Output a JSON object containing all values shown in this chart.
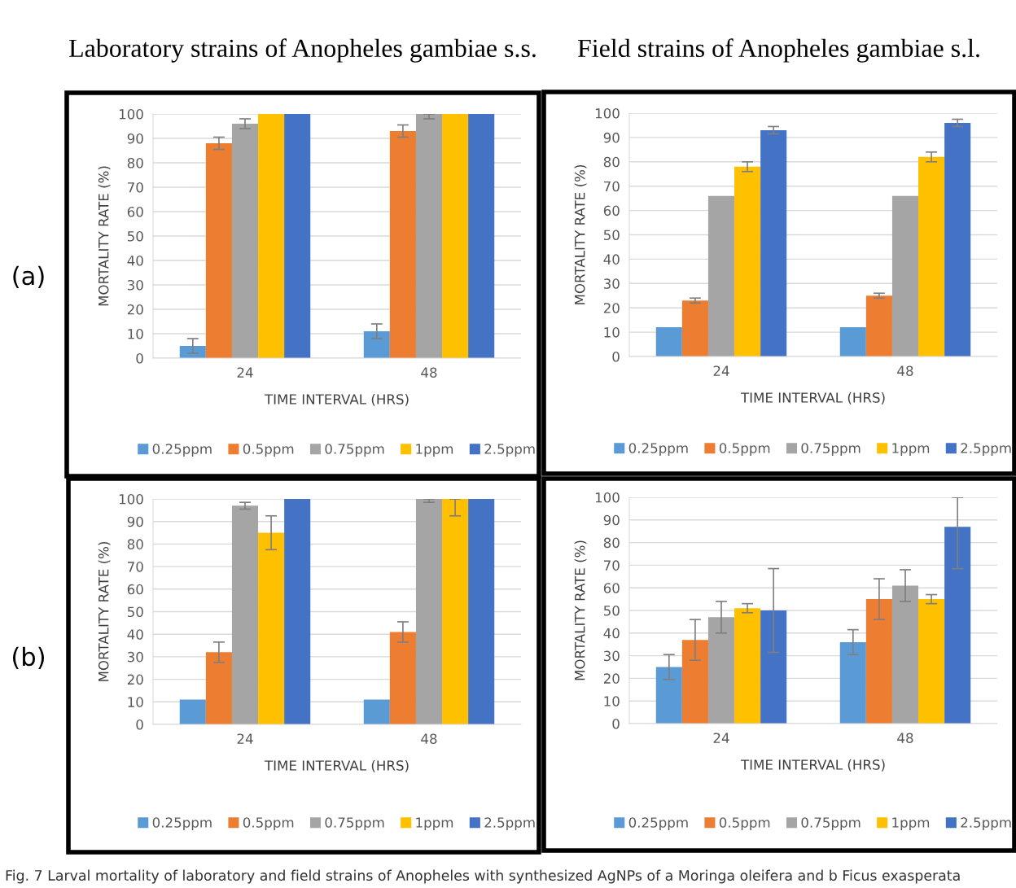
{
  "chart_data": [
    {
      "type": "bar",
      "title": "Laboratory strains of Anopheles gambiae s.s.",
      "xlabel": "TIME INTERVAL (HRS)",
      "ylabel": "MORTALITY RATE (%)",
      "categories": [
        "24",
        "48"
      ],
      "ylim": [
        0,
        100
      ],
      "yticks": [
        0,
        10,
        20,
        30,
        40,
        50,
        60,
        70,
        80,
        90,
        100
      ],
      "grid": "y",
      "legend": "bottom",
      "annotations": [
        "(a)"
      ],
      "series": [
        {
          "name": "0.25ppm",
          "color": "#5b9bd5",
          "values": [
            5,
            11
          ],
          "errors": [
            3,
            3
          ]
        },
        {
          "name": "0.5ppm",
          "color": "#ed7d31",
          "values": [
            88,
            93
          ],
          "errors": [
            2.5,
            2.5
          ]
        },
        {
          "name": "0.75ppm",
          "color": "#a5a5a5",
          "values": [
            96,
            100
          ],
          "errors": [
            2,
            [
              98,
              100
            ]
          ]
        },
        {
          "name": "1ppm",
          "color": "#ffc000",
          "values": [
            100,
            100
          ]
        },
        {
          "name": "2.5ppm",
          "color": "#4472c4",
          "values": [
            100,
            100
          ]
        }
      ]
    },
    {
      "type": "bar",
      "title": "Field strains of Anopheles gambiae s.l.",
      "xlabel": "TIME INTERVAL (HRS)",
      "ylabel": "MORTALITY RATE (%)",
      "categories": [
        "24",
        "48"
      ],
      "ylim": [
        0,
        100
      ],
      "yticks": [
        0,
        10,
        20,
        30,
        40,
        50,
        60,
        70,
        80,
        90,
        100
      ],
      "grid": "y",
      "legend": "bottom",
      "series": [
        {
          "name": "0.25ppm",
          "color": "#5b9bd5",
          "values": [
            12,
            12
          ]
        },
        {
          "name": "0.5ppm",
          "color": "#ed7d31",
          "values": [
            23,
            25
          ],
          "errors": [
            1,
            1
          ]
        },
        {
          "name": "0.75ppm",
          "color": "#a5a5a5",
          "values": [
            66,
            66
          ]
        },
        {
          "name": "1ppm",
          "color": "#ffc000",
          "values": [
            78,
            82
          ],
          "errors": [
            2,
            2
          ]
        },
        {
          "name": "2.5ppm",
          "color": "#4472c4",
          "values": [
            93,
            96
          ],
          "errors": [
            1.5,
            1.5
          ]
        }
      ]
    },
    {
      "type": "bar",
      "xlabel": "TIME INTERVAL (HRS)",
      "ylabel": "MORTALITY RATE (%)",
      "categories": [
        "24",
        "48"
      ],
      "ylim": [
        0,
        100
      ],
      "yticks": [
        0,
        10,
        20,
        30,
        40,
        50,
        60,
        70,
        80,
        90,
        100
      ],
      "grid": "y",
      "legend": "bottom",
      "annotations": [
        "(b)"
      ],
      "series": [
        {
          "name": "0.25ppm",
          "color": "#5b9bd5",
          "values": [
            11,
            11
          ]
        },
        {
          "name": "0.5ppm",
          "color": "#ed7d31",
          "values": [
            32,
            41
          ],
          "errors": [
            4.5,
            4.5
          ]
        },
        {
          "name": "0.75ppm",
          "color": "#a5a5a5",
          "values": [
            97,
            100
          ],
          "errors": [
            1.5,
            [
              98.5,
              100
            ]
          ]
        },
        {
          "name": "1ppm",
          "color": "#ffc000",
          "values": [
            85,
            100
          ],
          "errors": [
            7.5,
            [
              92.5,
              100
            ]
          ]
        },
        {
          "name": "2.5ppm",
          "color": "#4472c4",
          "values": [
            100,
            100
          ]
        }
      ]
    },
    {
      "type": "bar",
      "xlabel": "TIME INTERVAL (HRS)",
      "ylabel": "MORTALITY RATE (%)",
      "categories": [
        "24",
        "48"
      ],
      "ylim": [
        0,
        100
      ],
      "yticks": [
        0,
        10,
        20,
        30,
        40,
        50,
        60,
        70,
        80,
        90,
        100
      ],
      "grid": "y",
      "legend": "bottom",
      "annotations": [
        "Fig. 7 Larval mortality of laboratory and field strains of Anopheles with synthesized AgNPs of a Moringa oleifera and b Ficus exasperata"
      ],
      "series": [
        {
          "name": "0.25ppm",
          "color": "#5b9bd5",
          "values": [
            25,
            36
          ],
          "errors": [
            5.5,
            5.5
          ]
        },
        {
          "name": "0.5ppm",
          "color": "#ed7d31",
          "values": [
            37,
            55
          ],
          "errors": [
            9,
            9
          ]
        },
        {
          "name": "0.75ppm",
          "color": "#a5a5a5",
          "values": [
            47,
            61
          ],
          "errors": [
            7,
            7
          ]
        },
        {
          "name": "1ppm",
          "color": "#ffc000",
          "values": [
            51,
            55
          ],
          "errors": [
            2,
            2
          ]
        },
        {
          "name": "2.5ppm",
          "color": "#4472c4",
          "values": [
            50,
            87
          ],
          "errors": [
            18.5,
            [
              68.5,
              100
            ]
          ]
        }
      ]
    }
  ]
}
